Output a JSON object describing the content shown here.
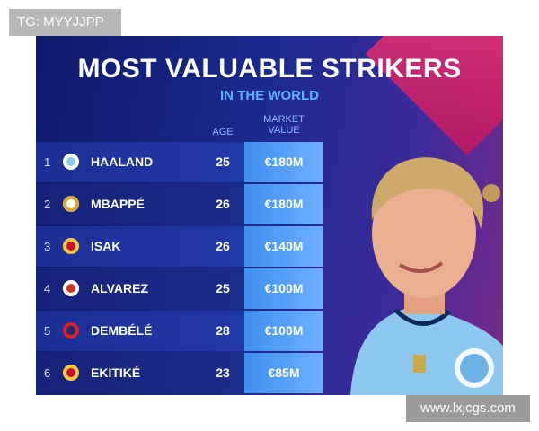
{
  "watermarks": {
    "top": "TG: MYYJJPP",
    "bottom": "www.lxjcgs.com"
  },
  "header": {
    "title": "MOST VALUABLE STRIKERS",
    "subtitle": "IN THE WORLD"
  },
  "table": {
    "columns": [
      "AGE",
      "MARKET VALUE"
    ],
    "rows": [
      [
        1,
        "HAALAND",
        25,
        "€180M"
      ],
      [
        2,
        "MBAPPÉ",
        26,
        "€180M"
      ],
      [
        3,
        "ISAK",
        26,
        "€140M"
      ],
      [
        4,
        "ALVAREZ",
        25,
        "€100M"
      ],
      [
        5,
        "DEMBÉLÉ",
        28,
        "€100M"
      ],
      [
        6,
        "EKITIKÉ",
        23,
        "€85M"
      ]
    ]
  }
}
